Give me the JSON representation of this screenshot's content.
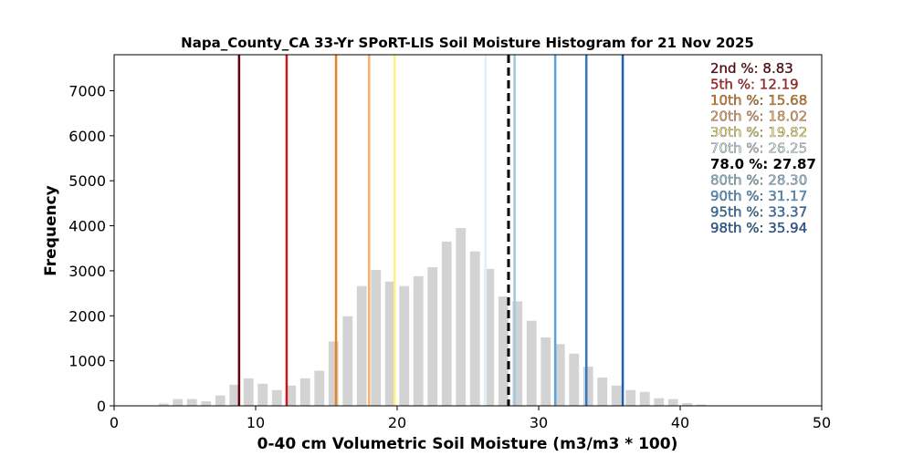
{
  "chart_data": {
    "type": "bar",
    "title": "Napa_County_CA 33-Yr SPoRT-LIS Soil Moisture Histogram for 21 Nov 2025",
    "xlabel": "0-40 cm Volumetric Soil Moisture (m3/m3 * 100)",
    "ylabel": "Frequency",
    "xlim": [
      0,
      50
    ],
    "ylim": [
      0,
      7800
    ],
    "xticks": [
      0,
      10,
      20,
      30,
      40,
      50
    ],
    "yticks": [
      0,
      1000,
      2000,
      3000,
      4000,
      5000,
      6000,
      7000
    ],
    "bar_color": "#d3d3d3",
    "bin_width": 1.0,
    "bins": [
      {
        "x": 3.5,
        "value": 50
      },
      {
        "x": 4.5,
        "value": 150
      },
      {
        "x": 5.5,
        "value": 150
      },
      {
        "x": 6.5,
        "value": 100
      },
      {
        "x": 7.5,
        "value": 230
      },
      {
        "x": 8.5,
        "value": 470
      },
      {
        "x": 9.5,
        "value": 610
      },
      {
        "x": 10.5,
        "value": 490
      },
      {
        "x": 11.5,
        "value": 350
      },
      {
        "x": 12.5,
        "value": 450
      },
      {
        "x": 13.5,
        "value": 610
      },
      {
        "x": 14.5,
        "value": 780
      },
      {
        "x": 15.5,
        "value": 1430
      },
      {
        "x": 16.5,
        "value": 1990
      },
      {
        "x": 17.5,
        "value": 2660
      },
      {
        "x": 18.5,
        "value": 3020
      },
      {
        "x": 19.5,
        "value": 2760
      },
      {
        "x": 20.5,
        "value": 2660
      },
      {
        "x": 21.5,
        "value": 2880
      },
      {
        "x": 22.5,
        "value": 3080
      },
      {
        "x": 23.5,
        "value": 3650
      },
      {
        "x": 24.5,
        "value": 3950
      },
      {
        "x": 25.5,
        "value": 3430
      },
      {
        "x": 26.5,
        "value": 3040
      },
      {
        "x": 27.5,
        "value": 2430
      },
      {
        "x": 28.5,
        "value": 2320
      },
      {
        "x": 29.5,
        "value": 1890
      },
      {
        "x": 30.5,
        "value": 1520
      },
      {
        "x": 31.5,
        "value": 1370
      },
      {
        "x": 32.5,
        "value": 1160
      },
      {
        "x": 33.5,
        "value": 870
      },
      {
        "x": 34.5,
        "value": 630
      },
      {
        "x": 35.5,
        "value": 450
      },
      {
        "x": 36.5,
        "value": 350
      },
      {
        "x": 37.5,
        "value": 310
      },
      {
        "x": 38.5,
        "value": 170
      },
      {
        "x": 39.5,
        "value": 150
      },
      {
        "x": 40.5,
        "value": 60
      },
      {
        "x": 41.5,
        "value": 30
      }
    ],
    "percentile_lines": [
      {
        "label": "2nd %: 8.83",
        "value": 8.83,
        "color": "#67000d",
        "dashed": false
      },
      {
        "label": "5th %: 12.19",
        "value": 12.19,
        "color": "#cb181d",
        "dashed": false
      },
      {
        "label": "10th %: 15.68",
        "value": 15.68,
        "color": "#e6851e",
        "dashed": false
      },
      {
        "label": "20th %: 18.02",
        "value": 18.02,
        "color": "#fdae6b",
        "dashed": false
      },
      {
        "label": "30th %: 19.82",
        "value": 19.82,
        "color": "#fff17a",
        "dashed": false
      },
      {
        "label": "70th %: 26.25",
        "value": 26.25,
        "color": "#dff1f7",
        "dashed": false
      },
      {
        "label": "78.0 %: 27.87",
        "value": 27.87,
        "color": "#000000",
        "dashed": true
      },
      {
        "label": "80th %: 28.30",
        "value": 28.3,
        "color": "#9ecae1",
        "dashed": false
      },
      {
        "label": "90th %: 31.17",
        "value": 31.17,
        "color": "#5aa3dc",
        "dashed": false
      },
      {
        "label": "95th %: 33.37",
        "value": 33.37,
        "color": "#2c7bc4",
        "dashed": false
      },
      {
        "label": "98th %: 35.94",
        "value": 35.94,
        "color": "#1f5fb0",
        "dashed": false
      }
    ],
    "legend_position": "top-right"
  }
}
